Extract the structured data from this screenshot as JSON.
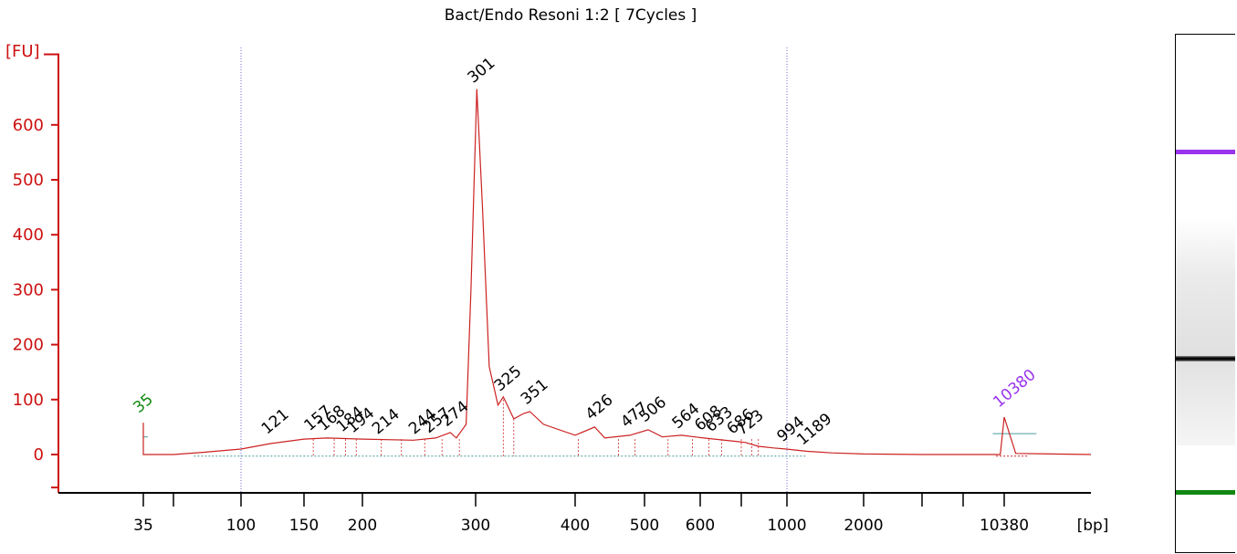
{
  "title": "Bact/Endo Resoni 1:2  [ 7Cycles ]",
  "colors": {
    "axis": "#cc1111",
    "trace": "#cc2222",
    "lower_marker": "#118811",
    "upper_marker": "#9933ee",
    "gridline": "#6b6bd6",
    "baseline": "#4a9a9a"
  },
  "chart_data": {
    "type": "line",
    "title": "Bact/Endo Resoni 1:2  [ 7Cycles ]",
    "ylabel": "[FU]",
    "xlabel": "[bp]",
    "ylim": [
      -70,
      730
    ],
    "yticks": [
      0,
      100,
      200,
      300,
      400,
      500,
      600
    ],
    "xticks": [
      "35",
      "100",
      "150",
      "200",
      "300",
      "400",
      "500",
      "600",
      "1000",
      "2000",
      "10380"
    ],
    "vertical_gridlines_at": [
      "100",
      "1000"
    ],
    "markers": [
      {
        "label": "35",
        "size_bp": 35,
        "fu": 58,
        "color": "lower_marker"
      },
      {
        "label": "10380",
        "size_bp": 10380,
        "fu": 68,
        "color": "upper_marker"
      }
    ],
    "peaks": [
      "121",
      "157",
      "168",
      "184",
      "194",
      "214",
      "244",
      "257",
      "274",
      "301",
      "325",
      "351",
      "426",
      "477",
      "506",
      "564",
      "608",
      "633",
      "686",
      "723",
      "994",
      "1189"
    ],
    "main_peak": {
      "size_bp": 301,
      "fu": 665
    },
    "trace": [
      [
        35,
        0
      ],
      [
        35,
        58
      ],
      [
        35,
        0
      ],
      [
        60,
        0
      ],
      [
        75,
        4
      ],
      [
        100,
        10
      ],
      [
        121,
        20
      ],
      [
        150,
        28
      ],
      [
        168,
        30
      ],
      [
        200,
        28
      ],
      [
        240,
        26
      ],
      [
        260,
        30
      ],
      [
        274,
        40
      ],
      [
        280,
        30
      ],
      [
        290,
        55
      ],
      [
        295,
        300
      ],
      [
        301,
        665
      ],
      [
        306,
        450
      ],
      [
        312,
        160
      ],
      [
        320,
        90
      ],
      [
        325,
        105
      ],
      [
        335,
        65
      ],
      [
        345,
        75
      ],
      [
        351,
        78
      ],
      [
        365,
        55
      ],
      [
        400,
        35
      ],
      [
        426,
        50
      ],
      [
        440,
        30
      ],
      [
        477,
        35
      ],
      [
        506,
        45
      ],
      [
        530,
        32
      ],
      [
        564,
        35
      ],
      [
        608,
        30
      ],
      [
        633,
        28
      ],
      [
        686,
        24
      ],
      [
        723,
        22
      ],
      [
        800,
        15
      ],
      [
        900,
        12
      ],
      [
        994,
        10
      ],
      [
        1189,
        6
      ],
      [
        1500,
        3
      ],
      [
        2000,
        1
      ],
      [
        4000,
        0
      ],
      [
        10000,
        0
      ],
      [
        10380,
        68
      ],
      [
        10800,
        2
      ],
      [
        14000,
        0
      ]
    ]
  },
  "gel": {
    "bands": [
      {
        "position": "upper_marker",
        "color": "upper_marker"
      },
      {
        "position": "main_peak",
        "color": "#000000"
      },
      {
        "position": "lower_marker",
        "color": "lower_marker"
      }
    ]
  }
}
